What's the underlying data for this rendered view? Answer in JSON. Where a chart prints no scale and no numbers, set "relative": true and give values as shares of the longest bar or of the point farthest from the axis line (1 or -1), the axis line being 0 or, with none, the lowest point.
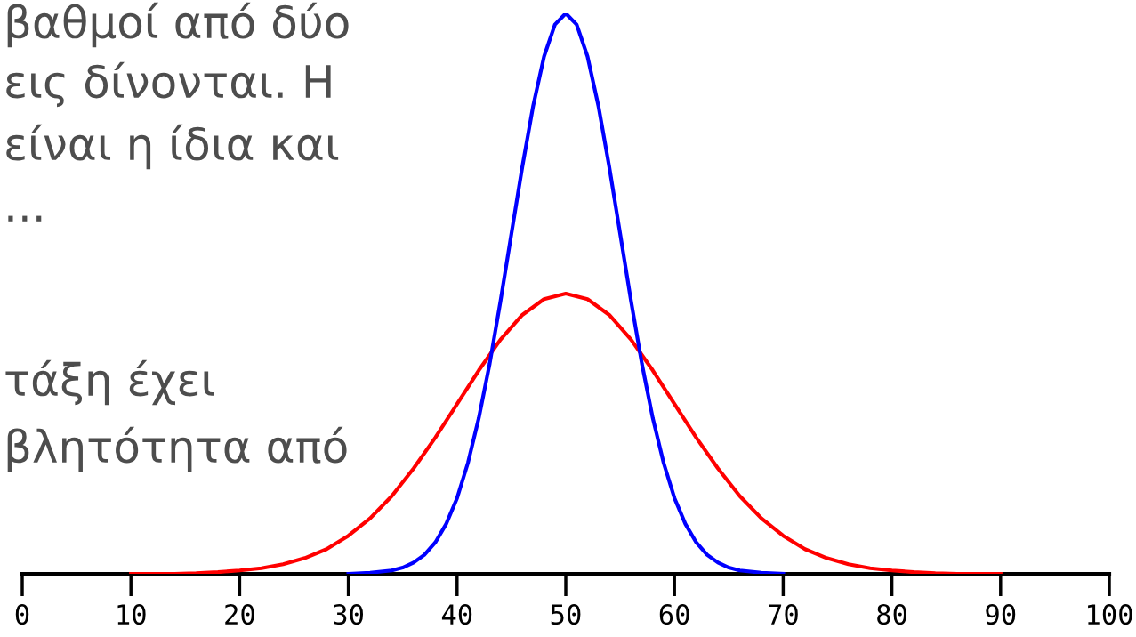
{
  "chart_data": {
    "type": "line",
    "relative": true,
    "annotations": [
      "βαθμοί από δύο",
      "εις δίνονται. Η",
      "είναι η ίδια και",
      "...",
      "τάξη έχει",
      "βλητότητα από"
    ],
    "xlim": [
      0,
      100
    ],
    "xticks": [
      0,
      10,
      20,
      30,
      40,
      50,
      60,
      70,
      80,
      90,
      100
    ],
    "grid": false,
    "legend": false,
    "marker": "none",
    "line_style": "solid",
    "series": [
      {
        "color": "#ff0000",
        "x": [
          10,
          14,
          16,
          18,
          20,
          22,
          24,
          26,
          28,
          30,
          32,
          34,
          36,
          38,
          40,
          42,
          44,
          46,
          48,
          50,
          52,
          54,
          56,
          58,
          60,
          62,
          64,
          66,
          68,
          70,
          72,
          74,
          76,
          78,
          80,
          82,
          84,
          86,
          90
        ],
        "values": [
          0,
          0,
          0.001,
          0.003,
          0.006,
          0.01,
          0.017,
          0.028,
          0.044,
          0.068,
          0.099,
          0.139,
          0.188,
          0.243,
          0.303,
          0.363,
          0.418,
          0.462,
          0.49,
          0.5,
          0.49,
          0.462,
          0.418,
          0.363,
          0.303,
          0.243,
          0.188,
          0.139,
          0.099,
          0.068,
          0.044,
          0.028,
          0.017,
          0.01,
          0.006,
          0.003,
          0.001,
          0,
          0
        ]
      },
      {
        "color": "#0000ff",
        "x": [
          30,
          32,
          34,
          35,
          36,
          37,
          38,
          39,
          40,
          41,
          42,
          43,
          44,
          45,
          46,
          47,
          48,
          49,
          50,
          51,
          52,
          53,
          54,
          55,
          56,
          57,
          58,
          59,
          60,
          61,
          62,
          63,
          64,
          65,
          66,
          68,
          70
        ],
        "values": [
          0,
          0.002,
          0.006,
          0.011,
          0.02,
          0.034,
          0.056,
          0.089,
          0.135,
          0.198,
          0.278,
          0.375,
          0.487,
          0.607,
          0.726,
          0.835,
          0.923,
          0.98,
          1,
          0.98,
          0.923,
          0.835,
          0.726,
          0.607,
          0.487,
          0.375,
          0.278,
          0.198,
          0.135,
          0.089,
          0.056,
          0.034,
          0.02,
          0.011,
          0.006,
          0.002,
          0
        ]
      }
    ]
  }
}
